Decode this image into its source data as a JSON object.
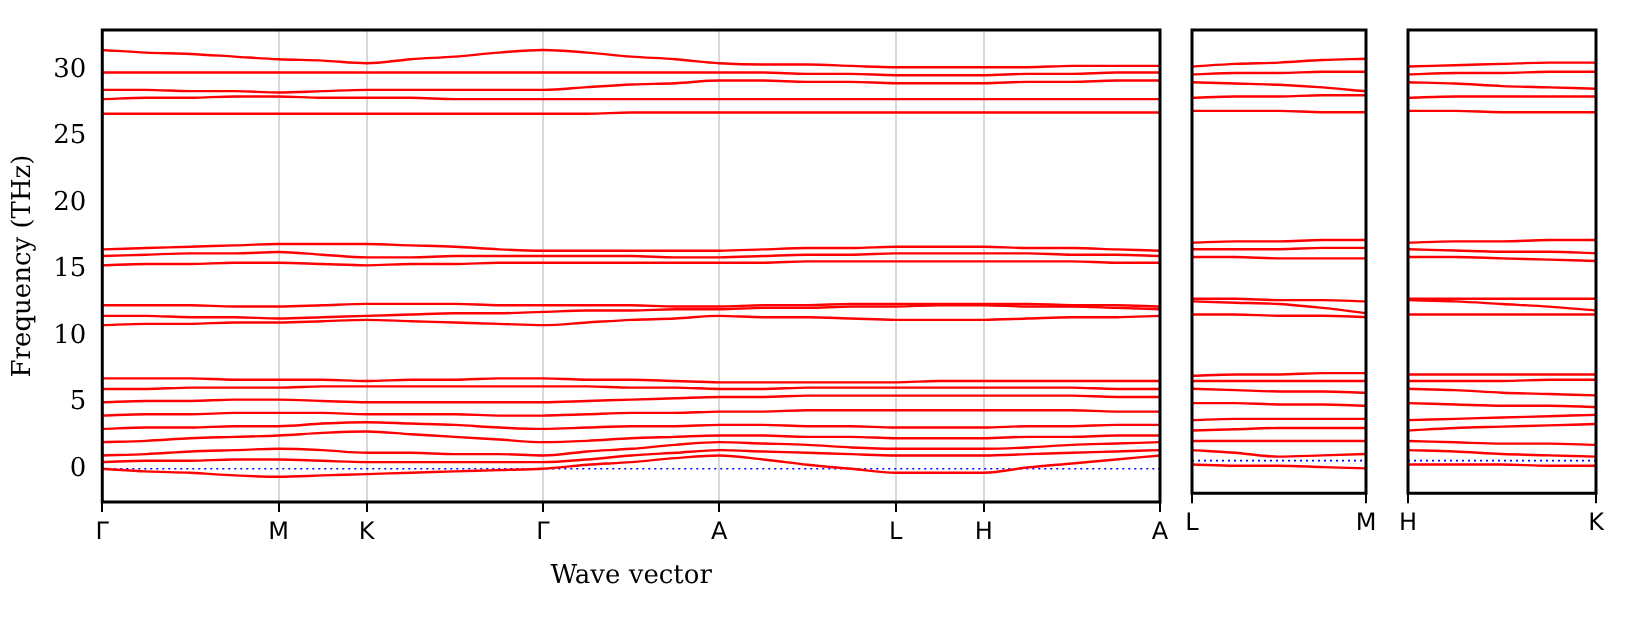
{
  "chart_data": [
    {
      "type": "line",
      "xlabel": "Wave vector",
      "ylabel": "Frequency (THz)",
      "categories": [
        "Γ",
        null,
        null,
        null,
        "M",
        null,
        "K",
        null,
        null,
        null,
        "Γ",
        null,
        null,
        null,
        "A",
        null,
        null,
        null,
        "L",
        null,
        "H",
        null,
        null,
        null,
        "A"
      ],
      "ylim": [
        -2.5,
        33
      ],
      "yticks": [
        0,
        5,
        10,
        15,
        20,
        25,
        30
      ],
      "grid": "x",
      "legend": false,
      "marker": "none",
      "line_style": "solid",
      "ref_lines": [
        {
          "axis": "y",
          "value": 0,
          "color": "#0000ff",
          "line_style": "dotted"
        }
      ],
      "series": [
        {
          "color": "#ff0000",
          "values": [
            0,
            -0.2,
            -0.3,
            -0.5,
            -0.6,
            -0.5,
            -0.4,
            -0.3,
            -0.2,
            -0.1,
            0,
            0.3,
            0.5,
            0.8,
            1,
            0.7,
            0.3,
            0,
            -0.3,
            -0.3,
            -0.3,
            0.1,
            0.4,
            0.7,
            1
          ]
        },
        {
          "color": "#ff0000",
          "values": [
            0.5,
            0.6,
            0.6,
            0.7,
            0.7,
            0.6,
            0.5,
            0.5,
            0.5,
            0.5,
            0.5,
            0.7,
            1,
            1.2,
            1.4,
            1.3,
            1.2,
            1.1,
            1,
            1,
            1,
            1.1,
            1.2,
            1.3,
            1.4
          ]
        },
        {
          "color": "#ff0000",
          "values": [
            1,
            1.1,
            1.3,
            1.4,
            1.5,
            1.4,
            1.2,
            1.2,
            1.1,
            1.1,
            1,
            1.3,
            1.5,
            1.8,
            2,
            1.9,
            1.8,
            1.6,
            1.5,
            1.5,
            1.5,
            1.6,
            1.8,
            1.9,
            2
          ]
        },
        {
          "color": "#ff0000",
          "values": [
            2,
            2.1,
            2.3,
            2.4,
            2.5,
            2.7,
            2.8,
            2.6,
            2.4,
            2.2,
            2,
            2.1,
            2.3,
            2.4,
            2.5,
            2.5,
            2.4,
            2.4,
            2.3,
            2.3,
            2.3,
            2.4,
            2.4,
            2.5,
            2.5
          ]
        },
        {
          "color": "#ff0000",
          "values": [
            3,
            3.1,
            3.1,
            3.2,
            3.2,
            3.4,
            3.5,
            3.4,
            3.3,
            3.1,
            3,
            3.1,
            3.2,
            3.2,
            3.3,
            3.3,
            3.2,
            3.2,
            3.1,
            3.1,
            3.1,
            3.2,
            3.2,
            3.3,
            3.3
          ]
        },
        {
          "color": "#ff0000",
          "values": [
            4,
            4.1,
            4.1,
            4.2,
            4.2,
            4.2,
            4.1,
            4.1,
            4.1,
            4,
            4,
            4.1,
            4.2,
            4.2,
            4.3,
            4.3,
            4.4,
            4.4,
            4.4,
            4.4,
            4.4,
            4.4,
            4.4,
            4.3,
            4.3
          ]
        },
        {
          "color": "#ff0000",
          "values": [
            5,
            5.1,
            5.1,
            5.2,
            5.2,
            5.1,
            5,
            5,
            5,
            5,
            5,
            5.1,
            5.2,
            5.3,
            5.4,
            5.4,
            5.5,
            5.5,
            5.5,
            5.5,
            5.5,
            5.5,
            5.5,
            5.4,
            5.4
          ]
        },
        {
          "color": "#ff0000",
          "values": [
            6,
            6,
            6.1,
            6.1,
            6.1,
            6.2,
            6.2,
            6.2,
            6.2,
            6.2,
            6.2,
            6.2,
            6.1,
            6.1,
            6,
            6,
            6.1,
            6.1,
            6.1,
            6.1,
            6.1,
            6.1,
            6.1,
            6,
            6
          ]
        },
        {
          "color": "#ff0000",
          "values": [
            6.8,
            6.8,
            6.8,
            6.7,
            6.7,
            6.7,
            6.6,
            6.7,
            6.7,
            6.8,
            6.8,
            6.7,
            6.7,
            6.6,
            6.5,
            6.5,
            6.5,
            6.5,
            6.5,
            6.6,
            6.6,
            6.6,
            6.6,
            6.6,
            6.6
          ]
        },
        {
          "color": "#ff0000",
          "values": [
            10.8,
            10.9,
            10.9,
            11,
            11,
            11.1,
            11.2,
            11.1,
            11,
            10.9,
            10.8,
            11,
            11.2,
            11.3,
            11.5,
            11.4,
            11.4,
            11.3,
            11.2,
            11.2,
            11.2,
            11.3,
            11.4,
            11.4,
            11.5
          ]
        },
        {
          "color": "#ff0000",
          "values": [
            11.5,
            11.5,
            11.4,
            11.4,
            11.3,
            11.4,
            11.5,
            11.6,
            11.7,
            11.7,
            11.8,
            11.9,
            11.9,
            12,
            12,
            12.1,
            12.1,
            12.2,
            12.2,
            12.3,
            12.3,
            12.2,
            12.2,
            12.1,
            12
          ]
        },
        {
          "color": "#ff0000",
          "values": [
            12.3,
            12.3,
            12.3,
            12.2,
            12.2,
            12.3,
            12.4,
            12.4,
            12.4,
            12.3,
            12.3,
            12.3,
            12.3,
            12.2,
            12.2,
            12.3,
            12.3,
            12.4,
            12.4,
            12.4,
            12.4,
            12.4,
            12.3,
            12.3,
            12.2
          ]
        },
        {
          "color": "#ff0000",
          "values": [
            15.3,
            15.4,
            15.4,
            15.5,
            15.5,
            15.4,
            15.3,
            15.4,
            15.4,
            15.5,
            15.5,
            15.5,
            15.5,
            15.5,
            15.5,
            15.5,
            15.6,
            15.6,
            15.6,
            15.6,
            15.6,
            15.6,
            15.6,
            15.5,
            15.5
          ]
        },
        {
          "color": "#ff0000",
          "values": [
            16,
            16.1,
            16.2,
            16.2,
            16.3,
            16.1,
            15.9,
            15.9,
            16,
            16,
            16,
            16,
            16,
            15.9,
            15.9,
            16,
            16.1,
            16.1,
            16.2,
            16.2,
            16.2,
            16.2,
            16.1,
            16.1,
            16
          ]
        },
        {
          "color": "#ff0000",
          "values": [
            16.5,
            16.6,
            16.7,
            16.8,
            16.9,
            16.9,
            16.9,
            16.8,
            16.7,
            16.5,
            16.4,
            16.4,
            16.4,
            16.4,
            16.4,
            16.5,
            16.6,
            16.6,
            16.7,
            16.7,
            16.7,
            16.6,
            16.6,
            16.5,
            16.4
          ]
        },
        {
          "color": "#ff0000",
          "values": [
            26.7,
            26.7,
            26.7,
            26.7,
            26.7,
            26.7,
            26.7,
            26.7,
            26.7,
            26.7,
            26.7,
            26.7,
            26.8,
            26.8,
            26.8,
            26.8,
            26.8,
            26.8,
            26.8,
            26.8,
            26.8,
            26.8,
            26.8,
            26.8,
            26.8
          ]
        },
        {
          "color": "#ff0000",
          "values": [
            27.8,
            27.9,
            27.9,
            28,
            28,
            27.9,
            27.9,
            27.9,
            27.8,
            27.8,
            27.8,
            27.8,
            27.8,
            27.8,
            27.8,
            27.8,
            27.8,
            27.8,
            27.8,
            27.8,
            27.8,
            27.8,
            27.8,
            27.8,
            27.8
          ]
        },
        {
          "color": "#ff0000",
          "values": [
            28.5,
            28.5,
            28.4,
            28.4,
            28.3,
            28.4,
            28.5,
            28.5,
            28.5,
            28.5,
            28.5,
            28.7,
            28.9,
            29,
            29.2,
            29.2,
            29.1,
            29.1,
            29,
            29,
            29,
            29.1,
            29.1,
            29.2,
            29.2
          ]
        },
        {
          "color": "#ff0000",
          "values": [
            29.8,
            29.8,
            29.8,
            29.8,
            29.8,
            29.8,
            29.8,
            29.8,
            29.8,
            29.8,
            29.8,
            29.8,
            29.8,
            29.8,
            29.8,
            29.8,
            29.7,
            29.7,
            29.6,
            29.6,
            29.6,
            29.7,
            29.7,
            29.8,
            29.8
          ]
        },
        {
          "color": "#ff0000",
          "values": [
            31.5,
            31.3,
            31.2,
            31,
            30.8,
            30.7,
            30.5,
            30.8,
            31,
            31.3,
            31.5,
            31.3,
            31,
            30.8,
            30.5,
            30.4,
            30.4,
            30.3,
            30.2,
            30.2,
            30.2,
            30.2,
            30.3,
            30.3,
            30.3
          ]
        }
      ]
    },
    {
      "type": "line",
      "categories": [
        "L",
        null,
        null,
        null,
        "M"
      ],
      "ylim": [
        -2.5,
        33
      ],
      "yticks": [
        0,
        5,
        10,
        15,
        20,
        25,
        30
      ],
      "tick_labels": "x",
      "legend": false,
      "marker": "none",
      "line_style": "solid",
      "ref_lines": [
        {
          "axis": "y",
          "value": 0,
          "color": "#0000ff",
          "line_style": "dotted"
        }
      ],
      "series": [
        {
          "color": "#ff0000",
          "values": [
            -0.3,
            -0.4,
            -0.4,
            -0.5,
            -0.6
          ]
        },
        {
          "color": "#ff0000",
          "values": [
            0.8,
            0.6,
            0.3,
            0.4,
            0.5
          ]
        },
        {
          "color": "#ff0000",
          "values": [
            1.5,
            1.5,
            1.5,
            1.5,
            1.5
          ]
        },
        {
          "color": "#ff0000",
          "values": [
            2.3,
            2.4,
            2.5,
            2.5,
            2.5
          ]
        },
        {
          "color": "#ff0000",
          "values": [
            3.1,
            3.2,
            3.2,
            3.2,
            3.2
          ]
        },
        {
          "color": "#ff0000",
          "values": [
            4.4,
            4.4,
            4.3,
            4.3,
            4.2
          ]
        },
        {
          "color": "#ff0000",
          "values": [
            5.5,
            5.4,
            5.3,
            5.3,
            5.2
          ]
        },
        {
          "color": "#ff0000",
          "values": [
            6.1,
            6.1,
            6.1,
            6.1,
            6.1
          ]
        },
        {
          "color": "#ff0000",
          "values": [
            6.5,
            6.6,
            6.6,
            6.7,
            6.7
          ]
        },
        {
          "color": "#ff0000",
          "values": [
            11.2,
            11.2,
            11.1,
            11.1,
            11
          ]
        },
        {
          "color": "#ff0000",
          "values": [
            12.2,
            12.1,
            12,
            11.7,
            11.3
          ]
        },
        {
          "color": "#ff0000",
          "values": [
            12.4,
            12.4,
            12.3,
            12.3,
            12.2
          ]
        },
        {
          "color": "#ff0000",
          "values": [
            15.6,
            15.6,
            15.5,
            15.5,
            15.5
          ]
        },
        {
          "color": "#ff0000",
          "values": [
            16.2,
            16.2,
            16.2,
            16.3,
            16.3
          ]
        },
        {
          "color": "#ff0000",
          "values": [
            16.7,
            16.8,
            16.8,
            16.9,
            16.9
          ]
        },
        {
          "color": "#ff0000",
          "values": [
            26.8,
            26.8,
            26.8,
            26.7,
            26.7
          ]
        },
        {
          "color": "#ff0000",
          "values": [
            27.8,
            27.9,
            27.9,
            28,
            28
          ]
        },
        {
          "color": "#ff0000",
          "values": [
            29,
            28.9,
            28.8,
            28.6,
            28.3
          ]
        },
        {
          "color": "#ff0000",
          "values": [
            29.6,
            29.7,
            29.7,
            29.8,
            29.8
          ]
        },
        {
          "color": "#ff0000",
          "values": [
            30.2,
            30.4,
            30.5,
            30.7,
            30.8
          ]
        }
      ]
    },
    {
      "type": "line",
      "categories": [
        "H",
        null,
        null,
        null,
        "K"
      ],
      "ylim": [
        -2.5,
        33
      ],
      "yticks": [
        0,
        5,
        10,
        15,
        20,
        25,
        30
      ],
      "tick_labels": "x",
      "legend": false,
      "marker": "none",
      "line_style": "solid",
      "ref_lines": [
        {
          "axis": "y",
          "value": 0,
          "color": "#0000ff",
          "line_style": "dotted"
        }
      ],
      "series": [
        {
          "color": "#ff0000",
          "values": [
            -0.3,
            -0.3,
            -0.3,
            -0.4,
            -0.4
          ]
        },
        {
          "color": "#ff0000",
          "values": [
            0.8,
            0.7,
            0.5,
            0.4,
            0.3
          ]
        },
        {
          "color": "#ff0000",
          "values": [
            1.5,
            1.4,
            1.3,
            1.3,
            1.2
          ]
        },
        {
          "color": "#ff0000",
          "values": [
            2.3,
            2.5,
            2.6,
            2.7,
            2.8
          ]
        },
        {
          "color": "#ff0000",
          "values": [
            3.1,
            3.2,
            3.3,
            3.4,
            3.5
          ]
        },
        {
          "color": "#ff0000",
          "values": [
            4.4,
            4.3,
            4.2,
            4.2,
            4.1
          ]
        },
        {
          "color": "#ff0000",
          "values": [
            5.5,
            5.4,
            5.2,
            5.1,
            5
          ]
        },
        {
          "color": "#ff0000",
          "values": [
            6.1,
            6.1,
            6.1,
            6.2,
            6.2
          ]
        },
        {
          "color": "#ff0000",
          "values": [
            6.6,
            6.6,
            6.6,
            6.6,
            6.6
          ]
        },
        {
          "color": "#ff0000",
          "values": [
            11.2,
            11.2,
            11.2,
            11.2,
            11.2
          ]
        },
        {
          "color": "#ff0000",
          "values": [
            12.3,
            12.2,
            12,
            11.8,
            11.5
          ]
        },
        {
          "color": "#ff0000",
          "values": [
            12.4,
            12.4,
            12.4,
            12.4,
            12.4
          ]
        },
        {
          "color": "#ff0000",
          "values": [
            15.6,
            15.6,
            15.5,
            15.4,
            15.3
          ]
        },
        {
          "color": "#ff0000",
          "values": [
            16.2,
            16.1,
            16,
            16,
            15.9
          ]
        },
        {
          "color": "#ff0000",
          "values": [
            16.7,
            16.8,
            16.8,
            16.9,
            16.9
          ]
        },
        {
          "color": "#ff0000",
          "values": [
            26.8,
            26.8,
            26.7,
            26.7,
            26.7
          ]
        },
        {
          "color": "#ff0000",
          "values": [
            27.8,
            27.9,
            27.9,
            27.9,
            27.9
          ]
        },
        {
          "color": "#ff0000",
          "values": [
            29,
            28.9,
            28.7,
            28.6,
            28.5
          ]
        },
        {
          "color": "#ff0000",
          "values": [
            29.6,
            29.7,
            29.7,
            29.8,
            29.8
          ]
        },
        {
          "color": "#ff0000",
          "values": [
            30.2,
            30.3,
            30.4,
            30.5,
            30.5
          ]
        }
      ]
    }
  ]
}
